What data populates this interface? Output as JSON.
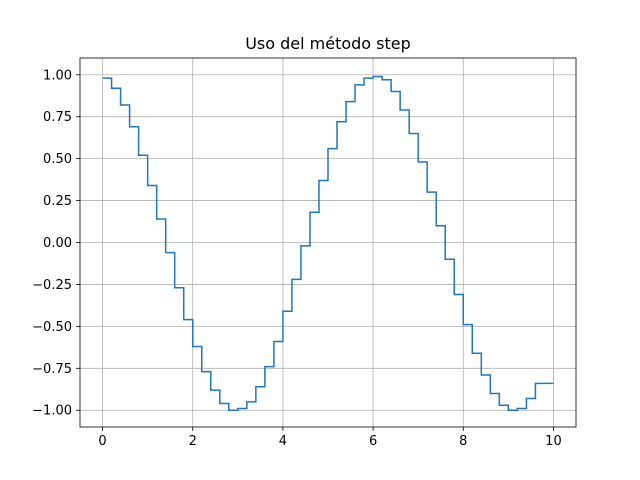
{
  "chart_data": {
    "type": "line",
    "drawstyle": "steps-pre",
    "title": "Uso del método step",
    "xlabel": "",
    "ylabel": "",
    "xlim": [
      -0.5,
      10.5
    ],
    "ylim": [
      -1.1,
      1.1
    ],
    "grid": true,
    "xticks": [
      0,
      2,
      4,
      6,
      8,
      10
    ],
    "yticks": [
      -1.0,
      -0.75,
      -0.5,
      -0.25,
      0.0,
      0.25,
      0.5,
      0.75,
      1.0
    ],
    "xtick_labels": [
      "0",
      "2",
      "4",
      "6",
      "8",
      "10"
    ],
    "ytick_labels": [
      "−1.00",
      "−0.75",
      "−0.50",
      "−0.25",
      "0.00",
      "0.25",
      "0.50",
      "0.75",
      "1.00"
    ],
    "series": [
      {
        "color": "#1f77b4",
        "x": [
          0.0,
          0.2,
          0.4,
          0.6,
          0.8,
          1.0,
          1.2,
          1.4,
          1.6,
          1.8,
          2.0,
          2.2,
          2.4,
          2.6,
          2.8,
          3.0,
          3.2,
          3.4,
          3.6,
          3.8,
          4.0,
          4.2,
          4.4,
          4.6,
          4.8,
          5.0,
          5.2,
          5.4,
          5.6,
          5.8,
          6.0,
          6.2,
          6.4,
          6.6,
          6.8,
          7.0,
          7.2,
          7.4,
          7.6,
          7.8,
          8.0,
          8.2,
          8.4,
          8.6,
          8.8,
          9.0,
          9.2,
          9.4,
          9.6,
          9.8,
          10.0
        ],
        "y": [
          0.98,
          0.98,
          0.92,
          0.82,
          0.69,
          0.52,
          0.34,
          0.14,
          -0.06,
          -0.27,
          -0.46,
          -0.62,
          -0.77,
          -0.88,
          -0.96,
          -1.0,
          -0.99,
          -0.95,
          -0.86,
          -0.74,
          -0.59,
          -0.41,
          -0.22,
          -0.02,
          0.18,
          0.37,
          0.56,
          0.72,
          0.84,
          0.94,
          0.98,
          0.99,
          0.97,
          0.9,
          0.79,
          0.65,
          0.48,
          0.3,
          0.1,
          -0.1,
          -0.31,
          -0.49,
          -0.66,
          -0.79,
          -0.9,
          -0.97,
          -1.0,
          -0.99,
          -0.93,
          -0.84,
          -0.84
        ]
      }
    ]
  }
}
